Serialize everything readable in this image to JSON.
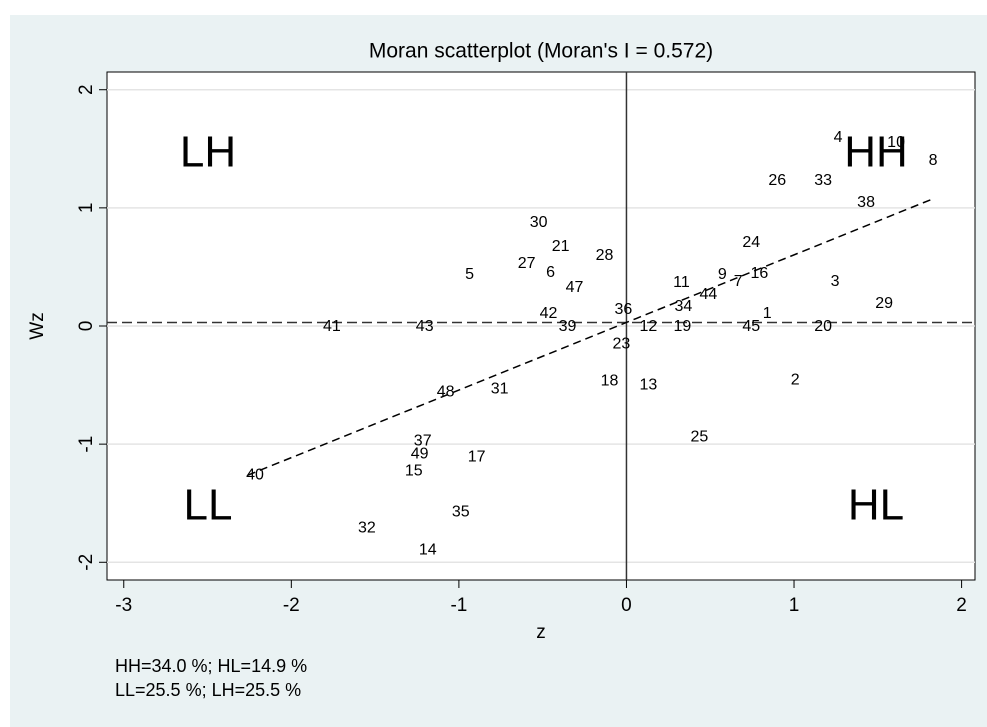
{
  "chart_data": {
    "type": "scatter",
    "title": "Moran scatterplot (Moran's I = 0.572)",
    "x_label": "z",
    "y_label": "Wz",
    "points": {
      "labels": [
        "4",
        "10",
        "8",
        "26",
        "33",
        "38",
        "30",
        "24",
        "21",
        "28",
        "27",
        "6",
        "5",
        "9",
        "16",
        "7",
        "11",
        "3",
        "47",
        "44",
        "34",
        "29",
        "42",
        "36",
        "1",
        "41",
        "43",
        "39",
        "12",
        "19",
        "45",
        "20",
        "23",
        "18",
        "13",
        "2",
        "31",
        "48",
        "25",
        "37",
        "49",
        "17",
        "15",
        "40",
        "35",
        "32",
        "14"
      ],
      "x": [
        1.263,
        1.609,
        1.83,
        0.9,
        1.174,
        1.43,
        -0.524,
        0.745,
        -0.393,
        -0.131,
        -0.596,
        -0.453,
        -0.936,
        0.572,
        0.793,
        0.667,
        0.328,
        1.245,
        -0.31,
        0.489,
        0.34,
        1.538,
        -0.465,
        -0.018,
        0.84,
        -1.758,
        -1.204,
        -0.352,
        0.131,
        0.334,
        0.745,
        1.174,
        -0.03,
        -0.101,
        0.131,
        1.007,
        -0.757,
        -1.079,
        0.435,
        -1.216,
        -1.234,
        -0.894,
        -1.269,
        -2.217,
        -0.989,
        -1.549,
        -1.186
      ],
      "y": [
        1.593,
        1.551,
        1.398,
        1.229,
        1.229,
        1.042,
        0.873,
        0.703,
        0.669,
        0.593,
        0.525,
        0.449,
        0.432,
        0.432,
        0.441,
        0.373,
        0.364,
        0.373,
        0.322,
        0.263,
        0.161,
        0.186,
        0.102,
        0.136,
        0.102,
        -0.008,
        -0.008,
        -0.008,
        -0.008,
        -0.008,
        -0.008,
        -0.008,
        -0.153,
        -0.466,
        -0.5,
        -0.458,
        -0.534,
        -0.559,
        -0.941,
        -0.975,
        -1.085,
        -1.11,
        -1.229,
        -1.263,
        -1.576,
        -1.712,
        -1.898
      ]
    },
    "xlim": [
      -3.1,
      2.08
    ],
    "ylim": [
      -2.15,
      2.15
    ],
    "xticks": [
      -3,
      -2,
      -1,
      0,
      1,
      2
    ],
    "yticks": [
      -2,
      -1,
      0,
      1,
      2
    ],
    "grid": true,
    "fit_line": {
      "x": [
        -2.26,
        1.83
      ],
      "y": [
        -1.263,
        1.077
      ]
    },
    "mean_lines": {
      "x": 0,
      "y": 0.03
    },
    "quadrant_labels": {
      "LH": "LH",
      "HH": "HH",
      "LL": "LL",
      "HL": "HL"
    },
    "note": [
      "HH=34.0 %; HL=14.9 %",
      "LL=25.5 %; LH=25.5 %"
    ]
  }
}
